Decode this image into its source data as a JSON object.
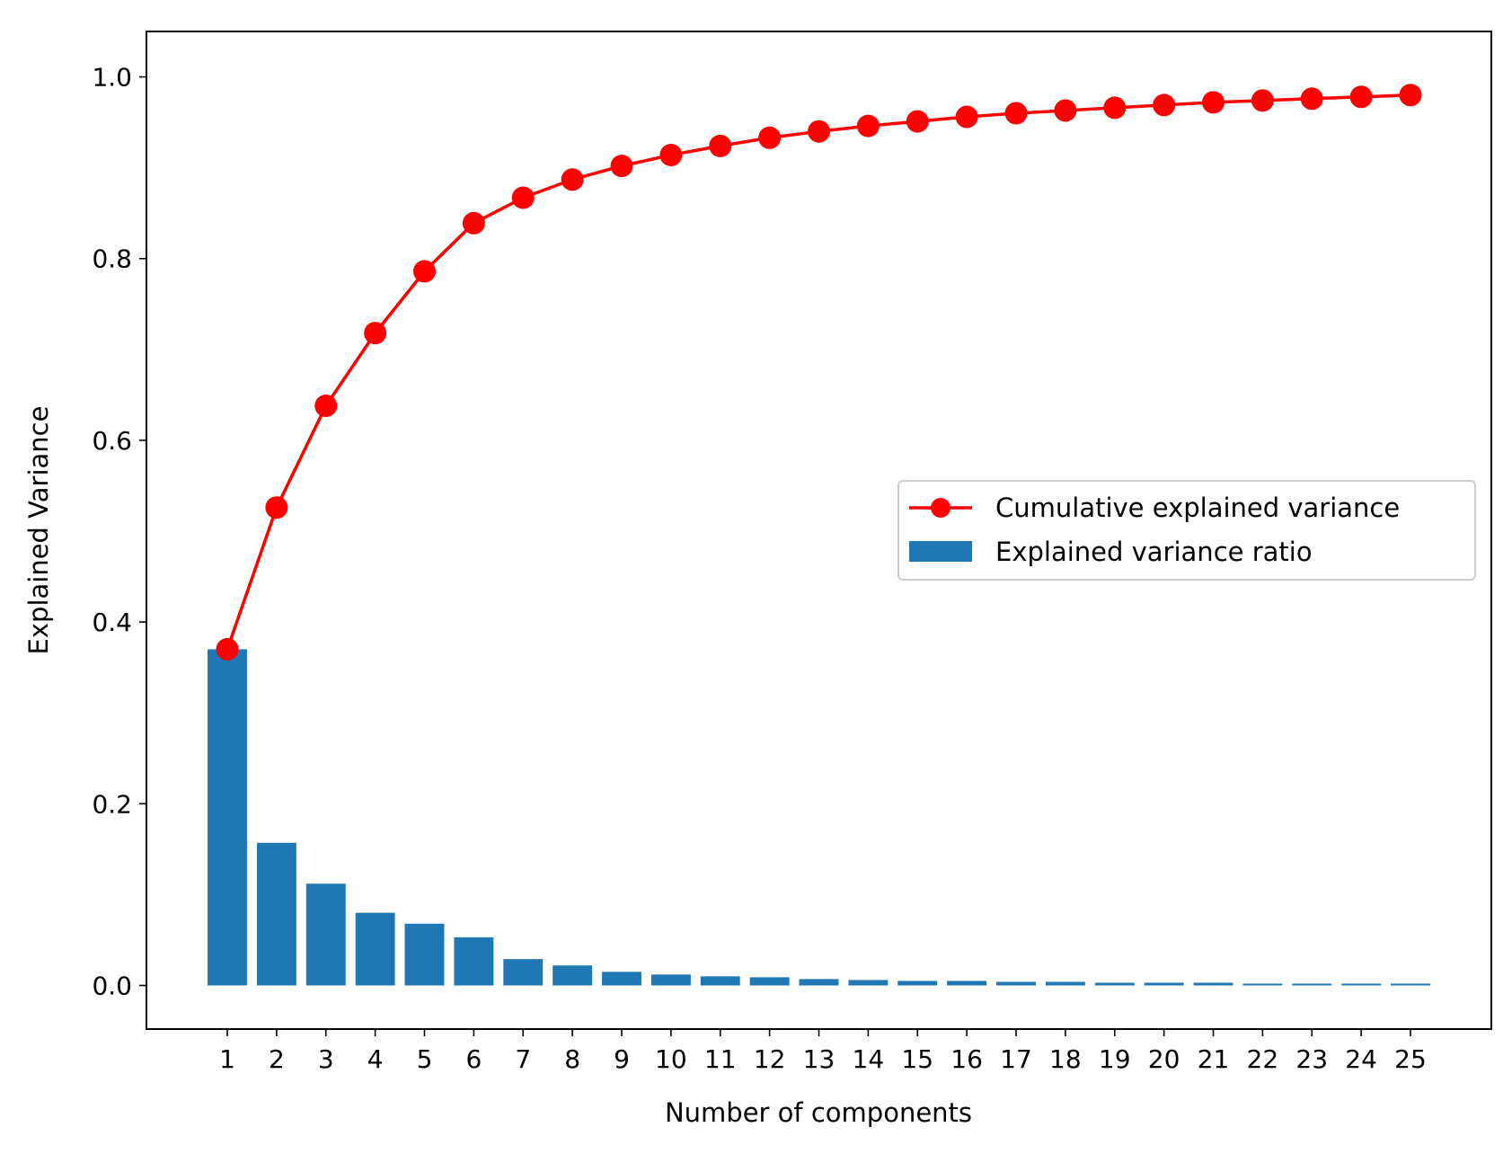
{
  "chart_data": {
    "type": "bar",
    "title": "",
    "xlabel": "Number of components",
    "ylabel": "Explained Variance",
    "xlim": [
      -0.64,
      26.64
    ],
    "ylim": [
      -0.048,
      1.05
    ],
    "categories": [
      "1",
      "2",
      "3",
      "4",
      "5",
      "6",
      "7",
      "8",
      "9",
      "10",
      "11",
      "12",
      "13",
      "14",
      "15",
      "16",
      "17",
      "18",
      "19",
      "20",
      "21",
      "22",
      "23",
      "24",
      "25"
    ],
    "yticks": [
      {
        "value": 0.0,
        "label": "0.0"
      },
      {
        "value": 0.2,
        "label": "0.2"
      },
      {
        "value": 0.4,
        "label": "0.4"
      },
      {
        "value": 0.6,
        "label": "0.6"
      },
      {
        "value": 0.8,
        "label": "0.8"
      },
      {
        "value": 1.0,
        "label": "1.0"
      }
    ],
    "grid": false,
    "legend_position": "center-right",
    "series": [
      {
        "name": "Cumulative explained variance",
        "kind": "line",
        "marker": "circle",
        "color": "#ff0000",
        "values": [
          0.37,
          0.526,
          0.638,
          0.718,
          0.786,
          0.839,
          0.867,
          0.887,
          0.902,
          0.914,
          0.924,
          0.933,
          0.94,
          0.946,
          0.951,
          0.956,
          0.96,
          0.963,
          0.966,
          0.969,
          0.972,
          0.974,
          0.976,
          0.978,
          0.98
        ]
      },
      {
        "name": "Explained variance ratio",
        "kind": "bar",
        "color": "#1f77b4",
        "values": [
          0.37,
          0.157,
          0.112,
          0.08,
          0.068,
          0.053,
          0.029,
          0.022,
          0.015,
          0.012,
          0.01,
          0.009,
          0.007,
          0.006,
          0.005,
          0.005,
          0.004,
          0.004,
          0.003,
          0.003,
          0.003,
          0.002,
          0.002,
          0.002,
          0.002
        ]
      }
    ]
  }
}
